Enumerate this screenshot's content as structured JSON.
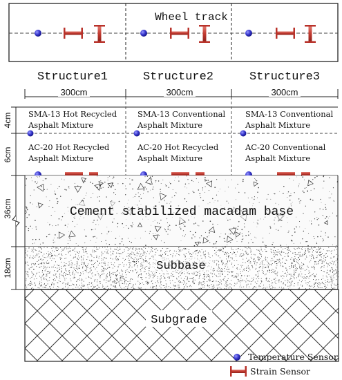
{
  "plan_view": {
    "label": "Wheel track"
  },
  "structures": [
    {
      "name": "Structure1",
      "width": "300cm",
      "top_layer": [
        "SMA-13 Hot Recycled",
        "Asphalt Mixture"
      ],
      "mid_layer": [
        "AC-20 Hot Recycled",
        "Asphalt Mixture"
      ]
    },
    {
      "name": "Structure2",
      "width": "300cm",
      "top_layer": [
        "SMA-13 Conventional",
        "Asphalt Mixture"
      ],
      "mid_layer": [
        "AC-20 Hot Recycled",
        "Asphalt Mixture"
      ]
    },
    {
      "name": "Structure3",
      "width": "300cm",
      "top_layer": [
        "SMA-13 Conventional",
        "Asphalt Mixture"
      ],
      "mid_layer": [
        "AC-20 Conventional",
        "Asphalt Mixture"
      ]
    }
  ],
  "thickness": {
    "top": "4cm",
    "mid": "6cm",
    "base": "36cm",
    "subbase": "18cm"
  },
  "layers": {
    "base": "Cement stabilized  macadam base",
    "subbase": "Subbase",
    "subgrade": "Subgrade"
  },
  "legend": {
    "temperature": "Temperature Sensor",
    "strain": "Strain Sensor"
  },
  "colors": {
    "sensor_blue": "#3f3fd6",
    "strain_red": "#b8322a",
    "line": "#222222"
  }
}
